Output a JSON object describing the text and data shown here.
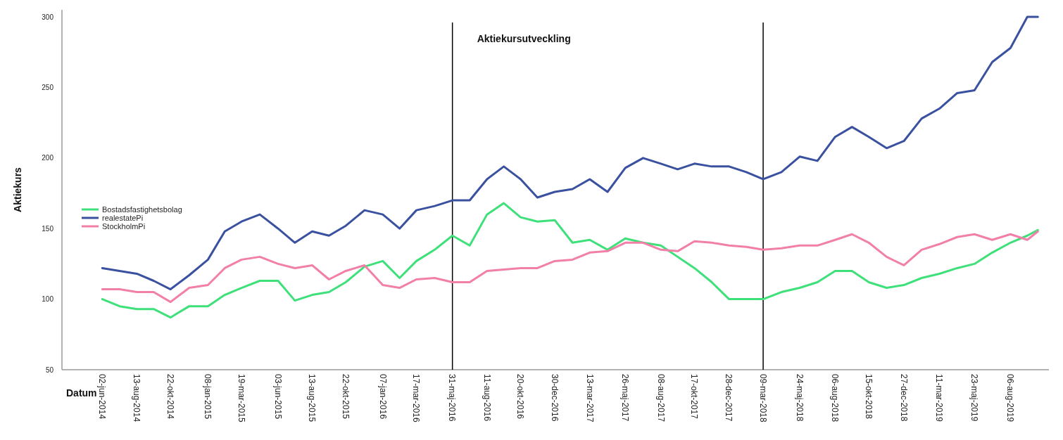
{
  "chart_data": {
    "type": "line",
    "title": "Aktiekursutveckling",
    "xlabel": "Datum",
    "ylabel": "Aktiekurs",
    "x": [
      "2014-06-02",
      "2014-07-08",
      "2014-08-13",
      "2014-09-17",
      "2014-10-22",
      "2014-11-30",
      "2015-01-08",
      "2015-02-12",
      "2015-03-19",
      "2015-04-26",
      "2015-06-03",
      "2015-07-08",
      "2015-08-13",
      "2015-09-17",
      "2015-10-22",
      "2015-11-30",
      "2016-01-07",
      "2016-02-11",
      "2016-03-17",
      "2016-04-24",
      "2016-05-31",
      "2016-07-06",
      "2016-08-11",
      "2016-09-15",
      "2016-10-20",
      "2016-11-24",
      "2016-12-30",
      "2017-02-05",
      "2017-03-13",
      "2017-04-19",
      "2017-05-26",
      "2017-07-02",
      "2017-08-08",
      "2017-09-12",
      "2017-10-17",
      "2017-11-22",
      "2017-12-28",
      "2018-02-02",
      "2018-03-09",
      "2018-04-16",
      "2018-05-24",
      "2018-06-30",
      "2018-08-06",
      "2018-09-10",
      "2018-10-15",
      "2018-11-21",
      "2018-12-27",
      "2019-02-02",
      "2019-03-11",
      "2019-04-17",
      "2019-05-23",
      "2019-06-29",
      "2019-08-06",
      "2019-09-10",
      "2019-10-02"
    ],
    "series": [
      {
        "name": "Bostadsfastighetsbolag",
        "color": "#3ee07a",
        "values": [
          100,
          95,
          93,
          93,
          87,
          95,
          95,
          103,
          108,
          113,
          113,
          99,
          103,
          105,
          112,
          123,
          127,
          115,
          127,
          135,
          145,
          138,
          160,
          168,
          158,
          155,
          156,
          140,
          142,
          135,
          143,
          140,
          138,
          130,
          122,
          112,
          100,
          100,
          100,
          105,
          108,
          112,
          120,
          120,
          112,
          108,
          110,
          115,
          118,
          122,
          125,
          133,
          140,
          145,
          149
        ]
      },
      {
        "name": "realestatePi",
        "color": "#3a51a0",
        "values": [
          122,
          120,
          118,
          113,
          107,
          117,
          128,
          148,
          155,
          160,
          150,
          140,
          148,
          145,
          152,
          163,
          160,
          150,
          163,
          166,
          170,
          170,
          185,
          194,
          185,
          172,
          176,
          178,
          185,
          176,
          193,
          200,
          196,
          192,
          196,
          194,
          194,
          190,
          185,
          190,
          201,
          198,
          215,
          222,
          215,
          207,
          212,
          228,
          235,
          246,
          248,
          268,
          278,
          300,
          300
        ]
      },
      {
        "name": "StockholmPi",
        "color": "#f27fa8",
        "values": [
          107,
          107,
          105,
          105,
          98,
          108,
          110,
          122,
          128,
          130,
          125,
          122,
          124,
          114,
          120,
          124,
          110,
          108,
          114,
          115,
          112,
          112,
          120,
          121,
          122,
          122,
          127,
          128,
          133,
          134,
          140,
          140,
          135,
          134,
          141,
          140,
          138,
          137,
          135,
          136,
          138,
          138,
          142,
          146,
          140,
          130,
          124,
          135,
          139,
          144,
          146,
          142,
          146,
          142,
          148
        ]
      }
    ],
    "xlim": [
      "2014-03-10",
      "2019-10-25"
    ],
    "xticks": [
      {
        "value": "2014-06-02",
        "label": "02-jun-2014"
      },
      {
        "value": "2014-08-13",
        "label": "13-aug-2014"
      },
      {
        "value": "2014-10-22",
        "label": "22-okt-2014"
      },
      {
        "value": "2015-01-08",
        "label": "08-jan-2015"
      },
      {
        "value": "2015-03-19",
        "label": "19-mar-2015"
      },
      {
        "value": "2015-06-03",
        "label": "03-jun-2015"
      },
      {
        "value": "2015-08-13",
        "label": "13-aug-2015"
      },
      {
        "value": "2015-10-22",
        "label": "22-okt-2015"
      },
      {
        "value": "2016-01-07",
        "label": "07-jan-2016"
      },
      {
        "value": "2016-03-17",
        "label": "17-mar-2016"
      },
      {
        "value": "2016-05-31",
        "label": "31-maj-2016"
      },
      {
        "value": "2016-08-11",
        "label": "11-aug-2016"
      },
      {
        "value": "2016-10-20",
        "label": "20-okt-2016"
      },
      {
        "value": "2016-12-30",
        "label": "30-dec-2016"
      },
      {
        "value": "2017-03-13",
        "label": "13-mar-2017"
      },
      {
        "value": "2017-05-26",
        "label": "26-maj-2017"
      },
      {
        "value": "2017-08-08",
        "label": "08-aug-2017"
      },
      {
        "value": "2017-10-17",
        "label": "17-okt-2017"
      },
      {
        "value": "2017-12-28",
        "label": "28-dec-2017"
      },
      {
        "value": "2018-03-09",
        "label": "09-mar-2018"
      },
      {
        "value": "2018-05-24",
        "label": "24-maj-2018"
      },
      {
        "value": "2018-08-06",
        "label": "06-aug-2018"
      },
      {
        "value": "2018-10-15",
        "label": "15-okt-2018"
      },
      {
        "value": "2018-12-27",
        "label": "27-dec-2018"
      },
      {
        "value": "2019-03-11",
        "label": "11-mar-2019"
      },
      {
        "value": "2019-05-23",
        "label": "23-maj-2019"
      },
      {
        "value": "2019-08-06",
        "label": "06-aug-2019"
      }
    ],
    "ylim": [
      50,
      305
    ],
    "yticks": [
      50,
      100,
      150,
      200,
      250,
      300
    ],
    "ref_lines": [
      {
        "axis": "x",
        "value": "2016-05-31",
        "color": "#000000"
      },
      {
        "axis": "x",
        "value": "2018-03-09",
        "color": "#000000"
      }
    ],
    "legend": "left",
    "grid": false,
    "marker": "none",
    "line_style": "solid"
  }
}
